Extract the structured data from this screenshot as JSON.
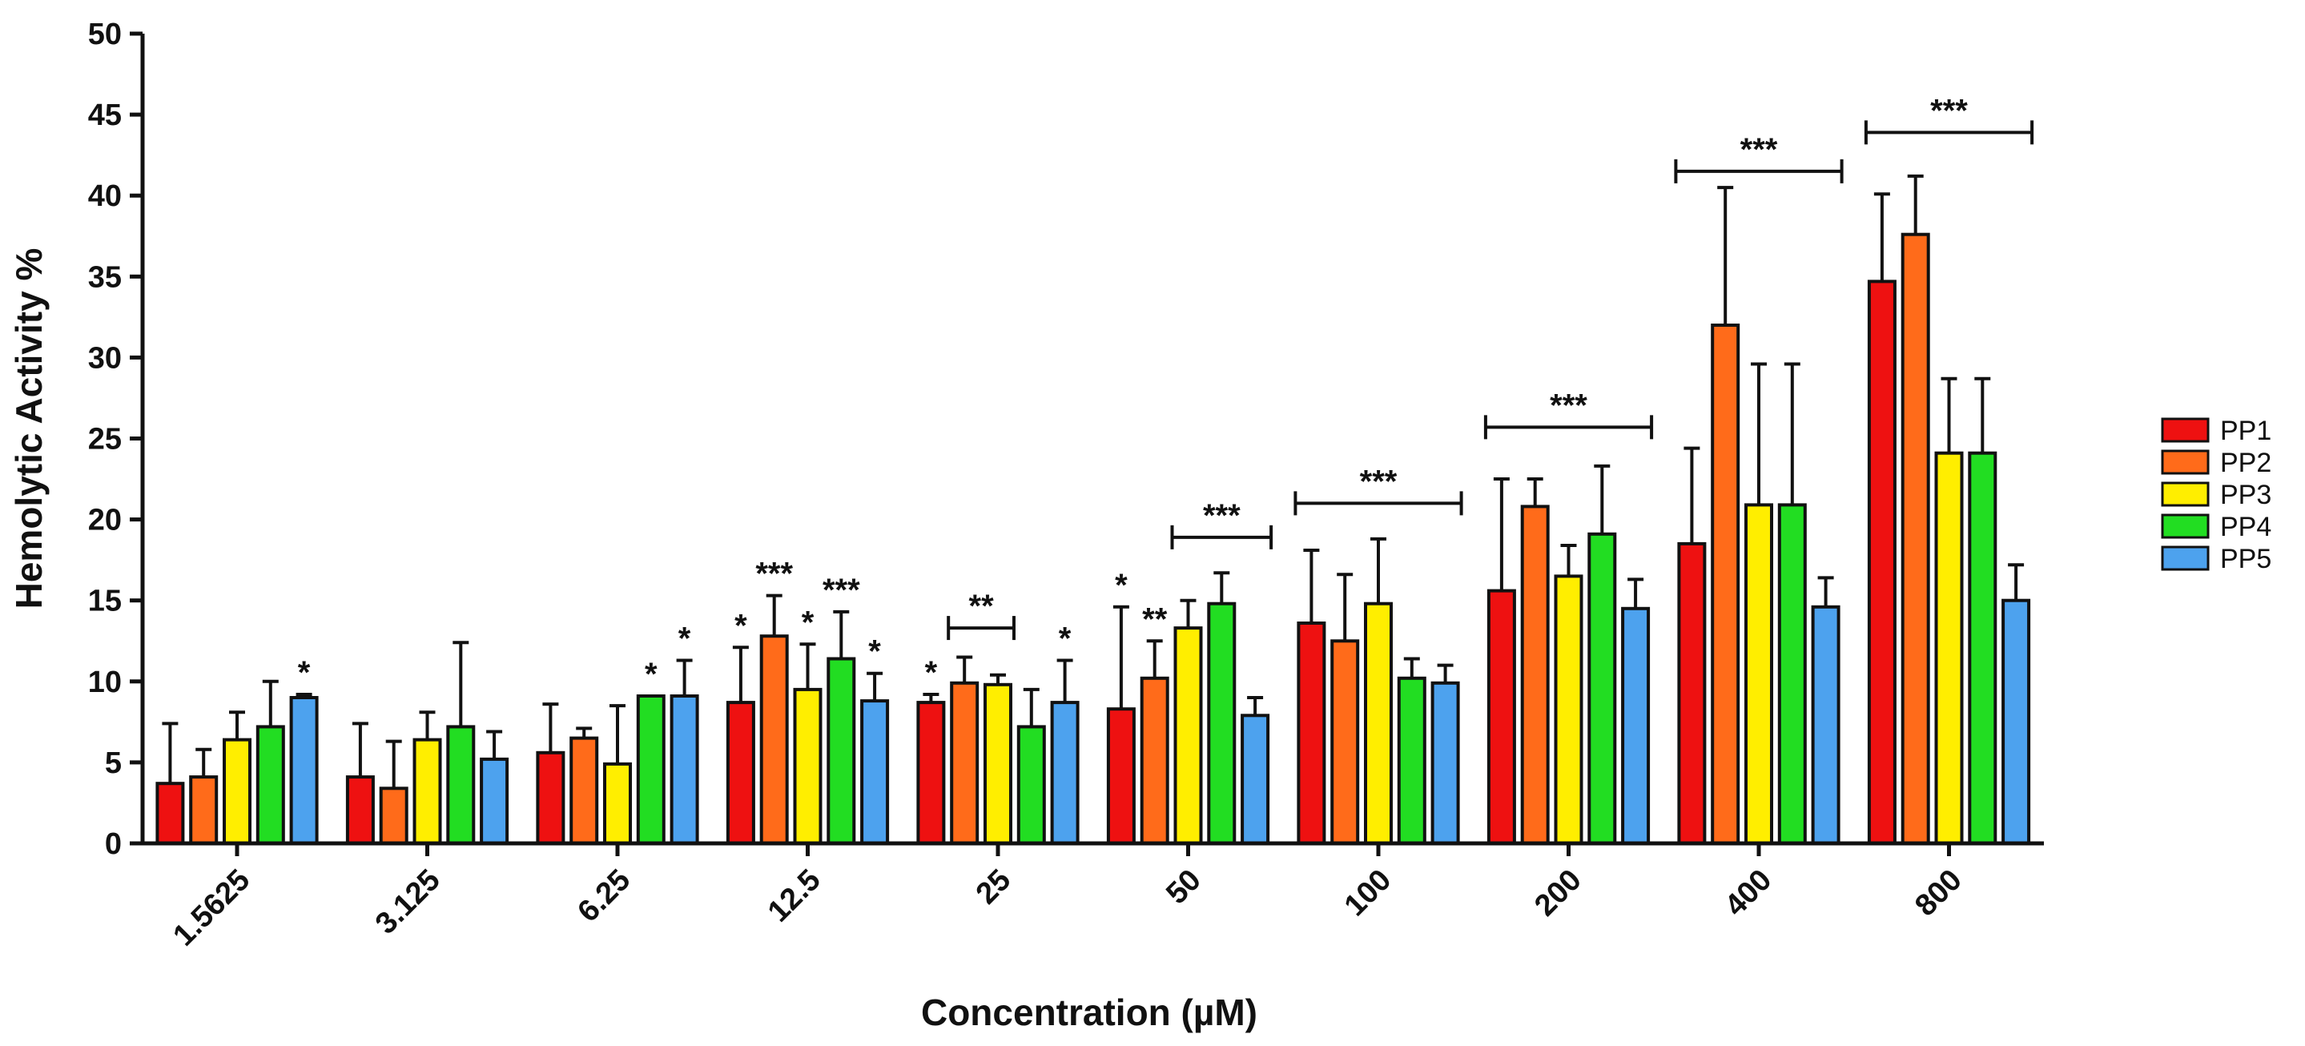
{
  "chart_data": {
    "type": "bar",
    "title": "",
    "xlabel": "Concentration (µM)",
    "ylabel": "Hemolytic Activity %",
    "ylim": [
      0,
      50
    ],
    "yticks": [
      0,
      5,
      10,
      15,
      20,
      25,
      30,
      35,
      40,
      45,
      50
    ],
    "ytick_labels": [
      "0",
      "5",
      "10",
      "15",
      "20",
      "25",
      "30",
      "35",
      "40",
      "45",
      "50"
    ],
    "categories": [
      "1.5625",
      "3.125",
      "6.25",
      "12.5",
      "25",
      "50",
      "100",
      "200",
      "400",
      "800"
    ],
    "legend_position": "right",
    "series": [
      {
        "name": "PP1",
        "color": "#ee1111",
        "values": [
          3.7,
          4.1,
          5.6,
          8.7,
          8.7,
          8.3,
          13.6,
          15.6,
          18.5,
          34.7
        ],
        "errors": [
          3.7,
          3.3,
          3.0,
          3.4,
          0.5,
          6.3,
          4.5,
          6.9,
          5.9,
          5.4
        ],
        "sig": [
          "",
          "",
          "",
          "*",
          "*",
          "*",
          "",
          "",
          "",
          ""
        ]
      },
      {
        "name": "PP2",
        "color": "#ff6b1a",
        "values": [
          4.1,
          3.4,
          6.5,
          12.8,
          9.9,
          10.2,
          12.5,
          20.8,
          32.0,
          37.6
        ],
        "errors": [
          1.7,
          2.9,
          0.6,
          2.5,
          1.6,
          2.3,
          4.1,
          1.7,
          8.5,
          3.6
        ],
        "sig": [
          "",
          "",
          "",
          "***",
          "",
          "**",
          "",
          "",
          "",
          ""
        ]
      },
      {
        "name": "PP3",
        "color": "#ffee00",
        "values": [
          6.4,
          6.4,
          4.9,
          9.5,
          9.8,
          13.3,
          14.8,
          16.5,
          20.9,
          24.1
        ],
        "errors": [
          1.7,
          1.7,
          3.6,
          2.8,
          0.6,
          1.7,
          4.0,
          1.9,
          8.7,
          4.6
        ],
        "sig": [
          "",
          "",
          "",
          "*",
          "",
          "",
          "",
          "",
          "",
          ""
        ]
      },
      {
        "name": "PP4",
        "color": "#22dd22",
        "values": [
          7.2,
          7.2,
          9.1,
          11.4,
          7.2,
          14.8,
          10.2,
          19.1,
          20.9,
          24.1
        ],
        "errors": [
          2.8,
          5.2,
          0.0,
          2.9,
          2.3,
          1.9,
          1.2,
          4.2,
          8.7,
          4.6
        ],
        "sig": [
          "",
          "",
          "*",
          "***",
          "",
          "",
          "",
          "",
          "",
          ""
        ]
      },
      {
        "name": "PP5",
        "color": "#4da2ee",
        "values": [
          9.0,
          5.2,
          9.1,
          8.8,
          8.7,
          7.9,
          9.9,
          14.5,
          14.6,
          15.0
        ],
        "errors": [
          0.2,
          1.7,
          2.2,
          1.7,
          2.6,
          1.1,
          1.1,
          1.8,
          1.8,
          2.2
        ],
        "sig": [
          "*",
          "",
          "*",
          "*",
          "*",
          "",
          "",
          "",
          "",
          ""
        ]
      }
    ],
    "group_annotations": [
      {
        "category": "25",
        "from_series": 1,
        "to_series": 2,
        "y": 13.3,
        "label": "**"
      },
      {
        "category": "50",
        "from_series": 2,
        "to_series": 4,
        "y": 18.9,
        "label": "***"
      },
      {
        "category": "100",
        "from_series": 0,
        "to_series": 4,
        "y": 21.0,
        "label": "***"
      },
      {
        "category": "200",
        "from_series": 0,
        "to_series": 4,
        "y": 25.7,
        "label": "***"
      },
      {
        "category": "400",
        "from_series": 0,
        "to_series": 4,
        "y": 41.5,
        "label": "***"
      },
      {
        "category": "800",
        "from_series": 0,
        "to_series": 4,
        "y": 43.9,
        "label": "***"
      }
    ]
  }
}
